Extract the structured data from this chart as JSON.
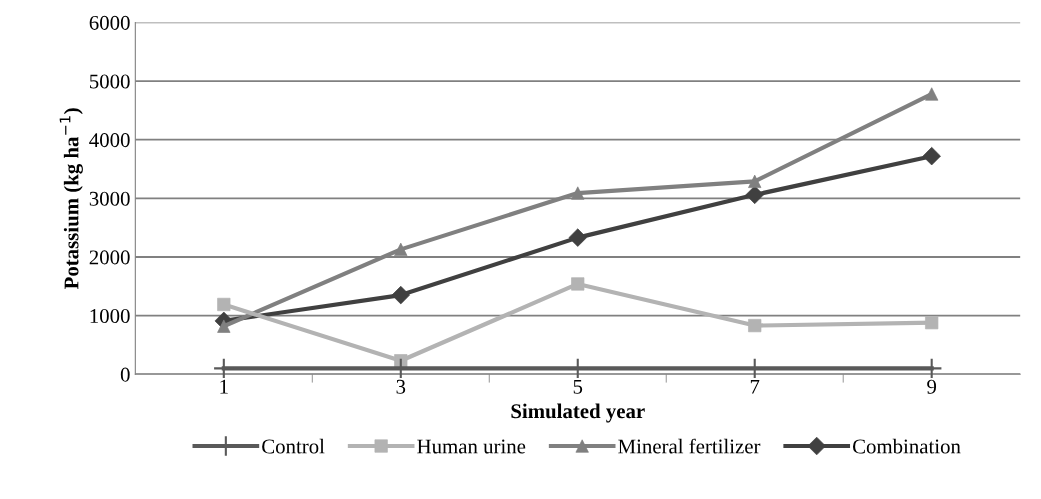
{
  "chart_data": {
    "type": "line",
    "xlabel": "Simulated year",
    "ylabel": "Potassium (kg ha$^{−1}$)",
    "categories": [
      "1",
      "3",
      "5",
      "7",
      "9"
    ],
    "series": [
      {
        "name": "Control",
        "color": "#595959",
        "marker": "cross",
        "values": [
          100,
          100,
          100,
          100,
          100
        ]
      },
      {
        "name": "Human urine",
        "color": "#b3b3b3",
        "marker": "square",
        "values": [
          1190,
          230,
          1540,
          830,
          880
        ]
      },
      {
        "name": "Mineral fertilizer",
        "color": "#808080",
        "marker": "triangle",
        "values": [
          820,
          2130,
          3090,
          3290,
          4780
        ]
      },
      {
        "name": "Combination",
        "color": "#404040",
        "marker": "diamond",
        "values": [
          910,
          1350,
          2330,
          3060,
          3720
        ]
      }
    ],
    "ylim": [
      0,
      6000
    ],
    "yticks": [
      0,
      1000,
      2000,
      3000,
      4000,
      5000,
      6000
    ],
    "grid": "y",
    "legend": "bottom",
    "line_style": "solid"
  }
}
